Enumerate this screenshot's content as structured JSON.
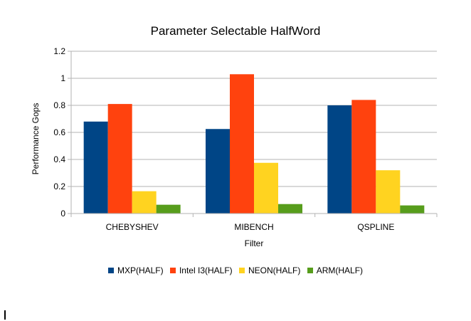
{
  "chart_data": {
    "type": "bar",
    "title": "Parameter Selectable HalfWord",
    "xlabel": "Filter",
    "ylabel": "Performance Gops",
    "categories": [
      "CHEBYSHEV",
      "MIBENCH",
      "QSPLINE"
    ],
    "series": [
      {
        "name": "MXP(HALF)",
        "color": "#004586",
        "values": [
          0.68,
          0.625,
          0.8
        ]
      },
      {
        "name": "Intel I3(HALF)",
        "color": "#ff420e",
        "values": [
          0.81,
          1.03,
          0.84
        ]
      },
      {
        "name": "NEON(HALF)",
        "color": "#ffd320",
        "values": [
          0.165,
          0.375,
          0.32
        ]
      },
      {
        "name": "ARM(HALF)",
        "color": "#579d1c",
        "values": [
          0.065,
          0.07,
          0.06
        ]
      }
    ],
    "ylim": [
      0,
      1.2
    ],
    "yticks": [
      "0",
      "0.2",
      "0.4",
      "0.6",
      "0.8",
      "1",
      "1.2"
    ],
    "grid": true,
    "legend": "bottom"
  }
}
